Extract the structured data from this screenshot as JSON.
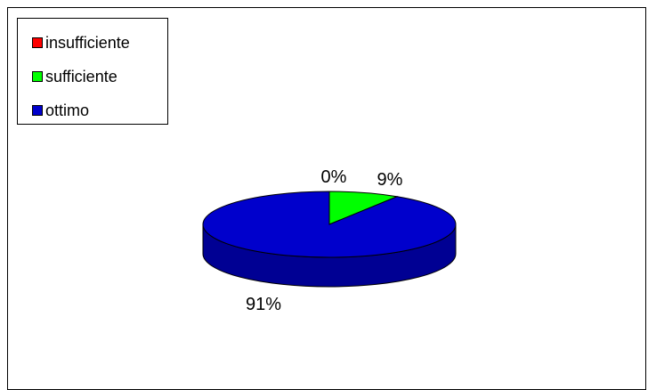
{
  "chart_data": {
    "type": "pie",
    "categories": [
      "insufficiente",
      "sufficiente",
      "ottimo"
    ],
    "values": [
      0,
      9,
      91
    ],
    "data_labels": [
      "0%",
      "9%",
      "91%"
    ],
    "colors": [
      "#ff0000",
      "#00ff00",
      "#0000cc"
    ],
    "title": "",
    "legend_position": "top-left",
    "style": "3d"
  }
}
